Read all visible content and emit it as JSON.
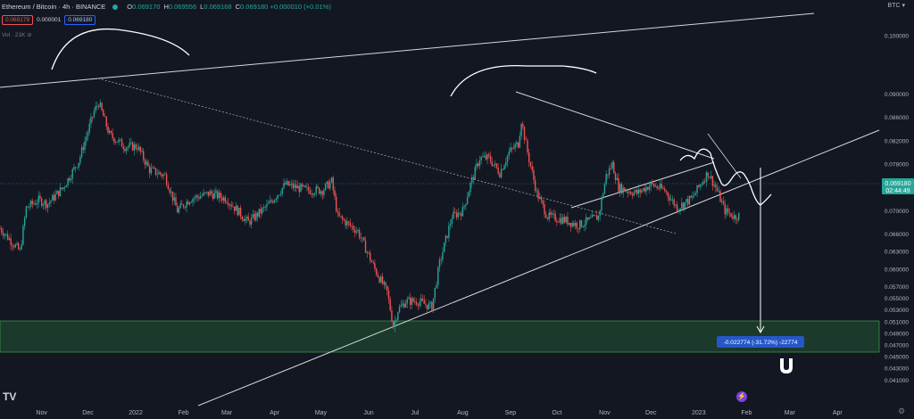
{
  "header": {
    "symbol": "Ethereum / Bitcoin · 4h · BINANCE",
    "o_label": "O",
    "o": "0.069170",
    "h_label": "H",
    "h": "0.069556",
    "l_label": "L",
    "l": "0.069168",
    "c_label": "C",
    "c": "0.069180",
    "change": "+0.000010 (+0.01%)",
    "sell_price": "0.069179",
    "spread": "0.000001",
    "buy_price": "0.069180",
    "volume_label": "Vol · 21K"
  },
  "currency": "BTC",
  "price_tag": {
    "price": "0.069180",
    "countdown": "02:44:49"
  },
  "measure_label": "-0.022774 (-31.72%) -22774",
  "colors": {
    "background": "#131722",
    "up": "#26a69a",
    "down": "#ef5350",
    "support_zone": "#1b3a2b",
    "measure_box": "#2962ff"
  },
  "icons": [
    "tradingview-logo-icon",
    "lightning-icon",
    "magnet-icon",
    "gear-icon"
  ],
  "chart_data": {
    "type": "candlestick",
    "title": "",
    "y_scale": "linear",
    "ylim": [
      0.0412,
      0.1038
    ],
    "y_ticks": [
      "0.100000",
      "0.090000",
      "0.086000",
      "0.082000",
      "0.078000",
      "0.074000",
      "0.070000",
      "0.066000",
      "0.063000",
      "0.060000",
      "0.057000",
      "0.055000",
      "0.053000",
      "0.051000",
      "0.049000",
      "0.047000",
      "0.045000",
      "0.043000",
      "0.041000"
    ],
    "x_ticks": [
      "Nov",
      "Dec",
      "2022",
      "Feb",
      "Mar",
      "Apr",
      "May",
      "Jun",
      "Jul",
      "Aug",
      "Sep",
      "Oct",
      "Nov",
      "Dec",
      "2023",
      "Feb",
      "Mar",
      "Apr"
    ],
    "xlim": [
      "2021-10-05",
      "2023-04-28"
    ],
    "grid": false,
    "price_path": [
      [
        "2021-10-05",
        0.067
      ],
      [
        "2021-10-18",
        0.063
      ],
      [
        "2021-10-22",
        0.0705
      ],
      [
        "2021-10-30",
        0.0718
      ],
      [
        "2021-11-05",
        0.0712
      ],
      [
        "2021-11-15",
        0.074
      ],
      [
        "2021-11-25",
        0.0785
      ],
      [
        "2021-12-05",
        0.087
      ],
      [
        "2021-12-08",
        0.0885
      ],
      [
        "2021-12-15",
        0.083
      ],
      [
        "2021-12-25",
        0.081
      ],
      [
        "2022-01-02",
        0.081
      ],
      [
        "2022-01-10",
        0.077
      ],
      [
        "2022-01-20",
        0.076
      ],
      [
        "2022-01-28",
        0.07
      ],
      [
        "2022-02-05",
        0.072
      ],
      [
        "2022-02-18",
        0.073
      ],
      [
        "2022-03-01",
        0.072
      ],
      [
        "2022-03-15",
        0.068
      ],
      [
        "2022-03-28",
        0.071
      ],
      [
        "2022-04-08",
        0.0745
      ],
      [
        "2022-04-22",
        0.0735
      ],
      [
        "2022-05-02",
        0.0735
      ],
      [
        "2022-05-08",
        0.075
      ],
      [
        "2022-05-12",
        0.069
      ],
      [
        "2022-05-25",
        0.0665
      ],
      [
        "2022-06-05",
        0.06
      ],
      [
        "2022-06-13",
        0.056
      ],
      [
        "2022-06-17",
        0.0503
      ],
      [
        "2022-06-20",
        0.053
      ],
      [
        "2022-06-25",
        0.0545
      ],
      [
        "2022-07-03",
        0.0545
      ],
      [
        "2022-07-12",
        0.0535
      ],
      [
        "2022-07-17",
        0.061
      ],
      [
        "2022-07-25",
        0.069
      ],
      [
        "2022-08-01",
        0.07
      ],
      [
        "2022-08-06",
        0.0745
      ],
      [
        "2022-08-12",
        0.079
      ],
      [
        "2022-08-18",
        0.079
      ],
      [
        "2022-08-25",
        0.0765
      ],
      [
        "2022-08-31",
        0.08
      ],
      [
        "2022-09-06",
        0.0815
      ],
      [
        "2022-09-08",
        0.0855
      ],
      [
        "2022-09-12",
        0.08
      ],
      [
        "2022-09-18",
        0.073
      ],
      [
        "2022-09-25",
        0.069
      ],
      [
        "2022-10-05",
        0.0685
      ],
      [
        "2022-10-15",
        0.0675
      ],
      [
        "2022-10-28",
        0.069
      ],
      [
        "2022-11-02",
        0.076
      ],
      [
        "2022-11-06",
        0.078
      ],
      [
        "2022-11-10",
        0.074
      ],
      [
        "2022-11-15",
        0.0735
      ],
      [
        "2022-11-22",
        0.073
      ],
      [
        "2022-12-01",
        0.0745
      ],
      [
        "2022-12-10",
        0.0735
      ],
      [
        "2022-12-18",
        0.0705
      ],
      [
        "2022-12-28",
        0.0722
      ],
      [
        "2023-01-02",
        0.0745
      ],
      [
        "2023-01-07",
        0.0765
      ],
      [
        "2023-01-12",
        0.074
      ],
      [
        "2023-01-18",
        0.07
      ],
      [
        "2023-01-24",
        0.069
      ],
      [
        "2023-01-27",
        0.0692
      ]
    ]
  }
}
